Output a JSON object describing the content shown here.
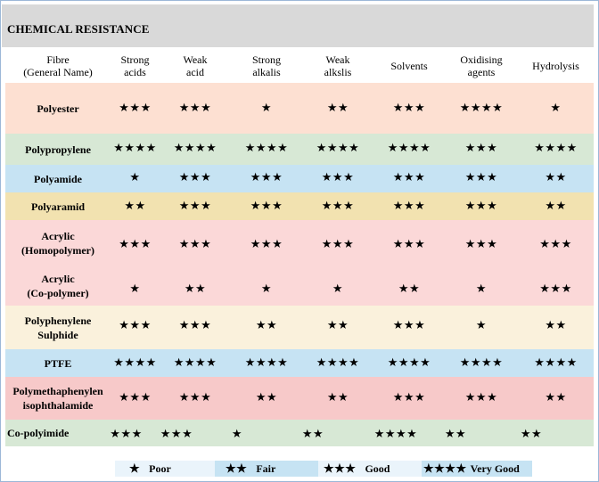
{
  "title": "CHEMICAL RESISTANCE",
  "header": {
    "fibre": "Fibre\n(General Name)",
    "columns": [
      "Strong\nacids",
      "Weak\nacid",
      "Strong\nalkalis",
      "Weak\nalkslis",
      "Solvents",
      "Oxidising\nagents",
      "Hydrolysis"
    ]
  },
  "rows": [
    {
      "fibre": "Polyester",
      "color": "#fde0d2",
      "ratings": [
        "★★★",
        "★★★",
        "★",
        "★★",
        "★★★",
        "★★★★",
        "★"
      ]
    },
    {
      "fibre": "Polypropylene",
      "color": "#d7e8d5",
      "ratings": [
        "★★★★",
        "★★★★",
        "★★★★",
        "★★★★",
        "★★★★",
        "★★★",
        "★★★★"
      ]
    },
    {
      "fibre": "Polyamide",
      "color": "#c6e3f3",
      "ratings": [
        "★",
        "★★★",
        "★★★",
        "★★★",
        "★★★",
        "★★★",
        "★★"
      ]
    },
    {
      "fibre": "Polyaramid",
      "color": "#f2e2b0",
      "ratings": [
        "★★",
        "★★★",
        "★★★",
        "★★★",
        "★★★",
        "★★★",
        "★★"
      ]
    },
    {
      "fibre": "Acrylic\n(Homopolymer)",
      "color": "#fbd8d8",
      "ratings": [
        "★★★",
        "★★★",
        "★★★",
        "★★★",
        "★★★",
        "★★★",
        "★★★"
      ]
    },
    {
      "fibre": "Acrylic\n(Co-polymer)",
      "color": "#fbd8d8",
      "ratings": [
        "★",
        "★★",
        "★",
        "★",
        "★★",
        "★",
        "★★★"
      ]
    },
    {
      "fibre": "Polyphenylene\nSulphide",
      "color": "#faf1dc",
      "ratings": [
        "★★★",
        "★★★",
        "★★",
        "★★",
        "★★★",
        "★",
        "★★"
      ]
    },
    {
      "fibre": "PTFE",
      "color": "#c6e3f3",
      "ratings": [
        "★★★★",
        "★★★★",
        "★★★★",
        "★★★★",
        "★★★★",
        "★★★★",
        "★★★★"
      ]
    },
    {
      "fibre": "Polymethaphenylen\nisophthalamide",
      "color": "#f7c9c9",
      "ratings": [
        "★★★",
        "★★★",
        "★★",
        "★★",
        "★★★",
        "★★★",
        "★★"
      ]
    },
    {
      "fibre": "Co-polyimide",
      "color": "#d7e8d5",
      "ratings": [
        "★★★",
        "★★★",
        "★",
        "★★",
        "★★★★",
        "★★",
        "★★"
      ]
    }
  ],
  "legend": [
    {
      "stars": "★",
      "label": "Poor",
      "color": "#eaf4fb"
    },
    {
      "stars": "★★",
      "label": "Fair",
      "color": "#c6e3f3"
    },
    {
      "stars": "★★★",
      "label": "Good",
      "color": "#eaf4fb"
    },
    {
      "stars": "★★★★",
      "label": "Very Good",
      "color": "#c6e3f3"
    }
  ]
}
